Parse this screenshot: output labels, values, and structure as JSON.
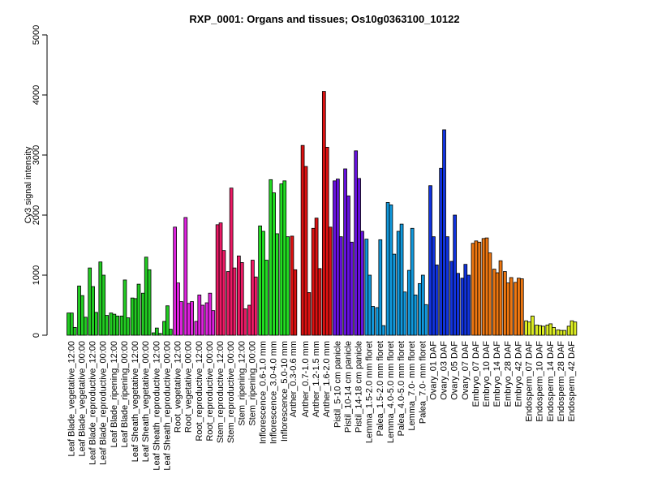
{
  "chart_data": {
    "type": "bar",
    "title": "RXP_0001: Organs and tissues; Os10g0363100_10122",
    "xlabel": "",
    "ylabel": "Cy3 signal intensity",
    "ylim": [
      0,
      5000
    ],
    "yticks": [
      0,
      1000,
      2000,
      3000,
      4000,
      5000
    ],
    "grid": false,
    "legend": "none",
    "groups": [
      {
        "label": "Leaf Blade_vegetative_12:00",
        "color": "#22cc22",
        "values": [
          370,
          370,
          130
        ]
      },
      {
        "label": "Leaf Blade_vegetative_00:00",
        "color": "#22cc22",
        "values": [
          820,
          660,
          300
        ]
      },
      {
        "label": "Leaf Blade_reproductive_12:00",
        "color": "#22cc22",
        "values": [
          1120,
          810,
          380
        ]
      },
      {
        "label": "Leaf Blade_reproductive_00:00",
        "color": "#22cc22",
        "values": [
          1220,
          1000,
          330
        ]
      },
      {
        "label": "Leaf Blade_ripening_12:00",
        "color": "#22cc22",
        "values": [
          370,
          350,
          320
        ]
      },
      {
        "label": "Leaf Blade_ripening_00:00",
        "color": "#22cc22",
        "values": [
          320,
          920,
          290
        ]
      },
      {
        "label": "Leaf Sheath_vegetative_12:00",
        "color": "#22cc22",
        "values": [
          620,
          610,
          850
        ]
      },
      {
        "label": "Leaf Sheath_vegetative_00:00",
        "color": "#22cc22",
        "values": [
          700,
          1300,
          1090
        ]
      },
      {
        "label": "Leaf Sheath_reproductive_12:00",
        "color": "#22cc22",
        "values": [
          40,
          120,
          30
        ]
      },
      {
        "label": "Leaf Sheath_reproductive_00:00",
        "color": "#22cc22",
        "values": [
          230,
          490,
          100
        ]
      },
      {
        "label": "Root_vegetative_12:00",
        "color": "#dd22dd",
        "values": [
          1800,
          870,
          560
        ]
      },
      {
        "label": "Root_vegetative_00:00",
        "color": "#dd22dd",
        "values": [
          1960,
          530,
          560
        ]
      },
      {
        "label": "Root_reproductive_12:00",
        "color": "#dd22dd",
        "values": [
          230,
          670,
          500
        ]
      },
      {
        "label": "Root_reproductive_00:00",
        "color": "#dd22dd",
        "values": [
          540,
          700,
          410
        ]
      },
      {
        "label": "Stem_reproductive_12:00",
        "color": "#ee1a66",
        "values": [
          1840,
          1870,
          1410
        ]
      },
      {
        "label": "Stem_reproductive_00:00",
        "color": "#ee1a66",
        "values": [
          1060,
          2450,
          1120
        ]
      },
      {
        "label": "Stem_ripening_12:00",
        "color": "#ee1a66",
        "values": [
          1320,
          1210,
          440
        ]
      },
      {
        "label": "Stem_ripening_00:00",
        "color": "#ee1a66",
        "values": [
          500,
          1250,
          970
        ]
      },
      {
        "label": "Inflorescence_0.6-1.0 mm",
        "color": "#22dd22",
        "values": [
          1820,
          1730,
          1250
        ]
      },
      {
        "label": "Inflorescence_3.0-4.0 mm",
        "color": "#22dd22",
        "values": [
          2590,
          2370,
          1690
        ]
      },
      {
        "label": "Inflorescence_5.0-10 mm",
        "color": "#22dd22",
        "values": [
          2520,
          2570,
          1640
        ]
      },
      {
        "label": "Anther_0.3-0.6 mm",
        "color": "#dd1111",
        "values": [
          1650,
          1090
        ]
      },
      {
        "label": "Anther_0.7-1.0 mm",
        "color": "#dd1111",
        "values": [
          3160,
          2810,
          710
        ]
      },
      {
        "label": "Anther_1.2-1.5 mm",
        "color": "#dd1111",
        "values": [
          1780,
          1950,
          1110
        ]
      },
      {
        "label": "Anther_1.6-2.0 mm",
        "color": "#dd1111",
        "values": [
          4060,
          3130,
          1800
        ]
      },
      {
        "label": "Pistil_5-10 cm panicle",
        "color": "#6611dd",
        "values": [
          2570,
          2600,
          1640
        ]
      },
      {
        "label": "Pistil_10-14 cm panicle",
        "color": "#6611dd",
        "values": [
          2770,
          2320,
          1550
        ]
      },
      {
        "label": "Pistil_14-18 cm panicle",
        "color": "#6611dd",
        "values": [
          3070,
          2610,
          1730
        ]
      },
      {
        "label": "Lemma_1.5-2.0 mm floret",
        "color": "#1199dd",
        "values": [
          1600,
          1000,
          480
        ]
      },
      {
        "label": "Palea_1.5-2.0 mm floret",
        "color": "#1199dd",
        "values": [
          460,
          1590,
          160
        ]
      },
      {
        "label": "Lemma_4.0-5.0 mm floret",
        "color": "#1199dd",
        "values": [
          2210,
          2170,
          1350
        ]
      },
      {
        "label": "Palea_4.0-5.0 mm floret",
        "color": "#1199dd",
        "values": [
          1730,
          1850,
          720
        ]
      },
      {
        "label": "Lemma_7.0- mm floret",
        "color": "#1199dd",
        "values": [
          1080,
          1780,
          670
        ]
      },
      {
        "label": "Palea_7.0- mm floret",
        "color": "#1199dd",
        "values": [
          860,
          1000,
          510
        ]
      },
      {
        "label": "Ovary_01 DAF",
        "color": "#1133dd",
        "values": [
          2490,
          1640,
          1170
        ]
      },
      {
        "label": "Ovary_03 DAF",
        "color": "#1133dd",
        "values": [
          2780,
          3420,
          1640
        ]
      },
      {
        "label": "Ovary_05 DAF",
        "color": "#1133dd",
        "values": [
          1230,
          2000,
          1030
        ]
      },
      {
        "label": "Ovary_07 DAF",
        "color": "#1133dd",
        "values": [
          950,
          1180,
          1000
        ]
      },
      {
        "label": "Embryo_07 DAF",
        "color": "#ee7711",
        "values": [
          1530,
          1570,
          1550
        ]
      },
      {
        "label": "Embryo_10 DAF",
        "color": "#ee7711",
        "values": [
          1610,
          1620,
          1370
        ]
      },
      {
        "label": "Embryo_14 DAF",
        "color": "#ee7711",
        "values": [
          1100,
          1040,
          1240
        ]
      },
      {
        "label": "Embryo_28 DAF",
        "color": "#ee7711",
        "values": [
          1060,
          870,
          960
        ]
      },
      {
        "label": "Embryo_42 DAF",
        "color": "#ee7711",
        "values": [
          880,
          950,
          940
        ]
      },
      {
        "label": "Endosperm_07 DAF",
        "color": "#ddee22",
        "values": [
          240,
          220,
          320
        ]
      },
      {
        "label": "Endosperm_10 DAF",
        "color": "#ddee22",
        "values": [
          170,
          160,
          150
        ]
      },
      {
        "label": "Endosperm_14 DAF",
        "color": "#ddee22",
        "values": [
          170,
          190,
          130
        ]
      },
      {
        "label": "Endosperm_28 DAF",
        "color": "#ddee22",
        "values": [
          90,
          80,
          80
        ]
      },
      {
        "label": "Endosperm_42 DAF",
        "color": "#ddee22",
        "values": [
          150,
          240,
          220
        ]
      }
    ]
  }
}
